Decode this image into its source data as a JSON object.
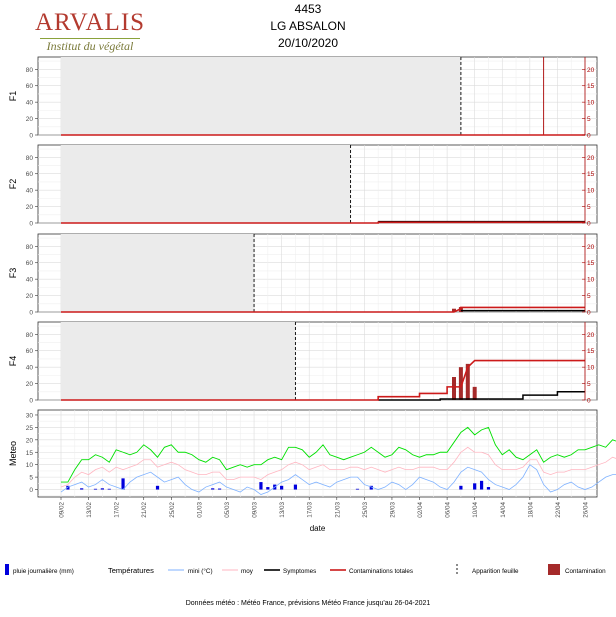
{
  "header": {
    "logo_main": "ARVALIS",
    "logo_sub": "Institut du végétal",
    "title_line1": "4453",
    "title_line2": "LG ABSALON",
    "title_line3": "20/10/2020"
  },
  "footnote": "Données météo : Météo France, prévisions Météo France jusqu'au 26-04-2021",
  "legend": {
    "rain": "pluie journalière (mm)",
    "temperatures": "Températures",
    "tmin": "mini (°C)",
    "tmean": "moy",
    "symptoms": "Symptomes",
    "contaminations": "Contaminations totales",
    "leaf": "Apparition feuille",
    "contam_bar": "Contamination"
  },
  "colors": {
    "contamination_line": "#cc1a1a",
    "contamination_bar": "#a52a2a",
    "symptoms": "#000000",
    "tmax": "#00e000",
    "tmin": "#7fb2ff",
    "tmean": "#ffb6c1",
    "rain": "#0000dd",
    "right_axis": "#aa0000",
    "shade": "#ebebeb"
  },
  "chart_data": [
    {
      "type": "line",
      "panel": "F1",
      "ylabel": "F1",
      "yticks_left": [
        0,
        20,
        40,
        60,
        80
      ],
      "yticks_right": [
        0,
        5,
        10,
        15,
        20
      ],
      "ylim_left": [
        0,
        95
      ],
      "ylim_right": [
        0,
        23.75
      ],
      "shade_range": [
        "2021-02-09",
        "2021-04-08"
      ],
      "leaf_appearance": "2021-04-08",
      "extra_right_line": "2021-04-20",
      "contaminations": [
        [
          "2021-02-09",
          0
        ],
        [
          "2021-04-26",
          0
        ]
      ],
      "symptoms": [],
      "contamination_bars": []
    },
    {
      "type": "line",
      "panel": "F2",
      "ylabel": "F2",
      "yticks_left": [
        0,
        20,
        40,
        60,
        80
      ],
      "yticks_right": [
        0,
        5,
        10,
        15,
        20
      ],
      "ylim_left": [
        0,
        95
      ],
      "ylim_right": [
        0,
        23.75
      ],
      "shade_range": [
        "2021-02-09",
        "2021-03-23"
      ],
      "leaf_appearance": "2021-03-23",
      "contaminations": [
        [
          "2021-02-09",
          0
        ],
        [
          "2021-03-27",
          0
        ],
        [
          "2021-03-27",
          0.2
        ],
        [
          "2021-04-26",
          0.2
        ]
      ],
      "symptoms": [
        [
          "2021-03-27",
          0.4
        ],
        [
          "2021-04-26",
          0.4
        ]
      ],
      "contamination_bars": []
    },
    {
      "type": "line",
      "panel": "F3",
      "ylabel": "F3",
      "yticks_left": [
        0,
        20,
        40,
        60,
        80
      ],
      "yticks_right": [
        0,
        5,
        10,
        15,
        20
      ],
      "ylim_left": [
        0,
        95
      ],
      "ylim_right": [
        0,
        23.75
      ],
      "shade_range": [
        "2021-02-09",
        "2021-03-09"
      ],
      "leaf_appearance": "2021-03-09",
      "contaminations": [
        [
          "2021-02-09",
          0
        ],
        [
          "2021-04-07",
          0
        ],
        [
          "2021-04-08",
          1
        ],
        [
          "2021-04-08",
          1.4
        ],
        [
          "2021-04-26",
          1.4
        ]
      ],
      "symptoms": [
        [
          "2021-04-08",
          0.4
        ],
        [
          "2021-04-26",
          0.4
        ]
      ],
      "contamination_bars": [
        [
          "2021-04-07",
          1.0
        ],
        [
          "2021-04-08",
          1.5
        ]
      ]
    },
    {
      "type": "line",
      "panel": "F4",
      "ylabel": "F4",
      "yticks_left": [
        0,
        20,
        40,
        60,
        80
      ],
      "yticks_right": [
        0,
        5,
        10,
        15,
        20
      ],
      "ylim_left": [
        0,
        95
      ],
      "ylim_right": [
        0,
        23.75
      ],
      "shade_range": [
        "2021-02-09",
        "2021-03-15"
      ],
      "leaf_appearance": "2021-03-15",
      "contaminations": [
        [
          "2021-02-09",
          0
        ],
        [
          "2021-03-27",
          0
        ],
        [
          "2021-03-27",
          1
        ],
        [
          "2021-04-02",
          1
        ],
        [
          "2021-04-02",
          2
        ],
        [
          "2021-04-06",
          2
        ],
        [
          "2021-04-06",
          4
        ],
        [
          "2021-04-08",
          4
        ],
        [
          "2021-04-09",
          10
        ],
        [
          "2021-04-10",
          12
        ],
        [
          "2021-04-26",
          12
        ]
      ],
      "symptoms": [
        [
          "2021-03-27",
          0
        ],
        [
          "2021-04-05",
          0
        ],
        [
          "2021-04-05",
          0.3
        ],
        [
          "2021-04-17",
          0.3
        ],
        [
          "2021-04-17",
          1.5
        ],
        [
          "2021-04-22",
          1.5
        ],
        [
          "2021-04-22",
          2.5
        ],
        [
          "2021-04-26",
          2.5
        ]
      ],
      "contamination_bars": [
        [
          "2021-04-07",
          7
        ],
        [
          "2021-04-08",
          10
        ],
        [
          "2021-04-09",
          11
        ],
        [
          "2021-04-10",
          4
        ]
      ]
    },
    {
      "type": "line",
      "panel": "Meteo",
      "ylabel": "Meteo",
      "xlabel": "date",
      "yticks": [
        0,
        5,
        10,
        15,
        20,
        25,
        30
      ],
      "ylim": [
        -3,
        32
      ],
      "x_tick_labels": [
        "09/02",
        "13/02",
        "17/02",
        "21/02",
        "25/02",
        "01/03",
        "05/03",
        "09/03",
        "13/03",
        "17/03",
        "21/03",
        "25/03",
        "29/03",
        "02/04",
        "06/04",
        "10/04",
        "14/04",
        "18/04",
        "22/04",
        "26/04"
      ],
      "x_start": "2021-02-09",
      "tmax": [
        3,
        3,
        8,
        12,
        12,
        14,
        13,
        11,
        16,
        15,
        14,
        15,
        18,
        16,
        13,
        17,
        18,
        15,
        15,
        14,
        12,
        11,
        13,
        12,
        8,
        9,
        10,
        9,
        10,
        10,
        12,
        13,
        12,
        17,
        17,
        16,
        13,
        15,
        18,
        14,
        13,
        12,
        13,
        14,
        15,
        17,
        15,
        13,
        14,
        17,
        16,
        14,
        13,
        14,
        14,
        15,
        15,
        19,
        23,
        25,
        22,
        24,
        25,
        18,
        14,
        16,
        13,
        12,
        14,
        16,
        11,
        13,
        14,
        13,
        14,
        16,
        16,
        17,
        18,
        17,
        20,
        19,
        18,
        18,
        17,
        16
      ],
      "tmin": [
        -1,
        1,
        2,
        3,
        1,
        2,
        4,
        2,
        1,
        0,
        3,
        5,
        6,
        7,
        5,
        3,
        4,
        5,
        2,
        0,
        -1,
        1,
        2,
        3,
        1,
        0,
        -1,
        1,
        0,
        -2,
        -1,
        1,
        3,
        4,
        6,
        4,
        2,
        3,
        2,
        1,
        3,
        4,
        5,
        5,
        2,
        1,
        0,
        1,
        3,
        2,
        0,
        2,
        5,
        4,
        3,
        1,
        0,
        3,
        7,
        9,
        8,
        7,
        4,
        2,
        1,
        0,
        2,
        5,
        10,
        8,
        2,
        -1,
        0,
        2,
        3,
        1,
        0,
        1,
        3,
        5,
        6,
        6,
        5,
        6,
        6,
        5
      ],
      "tmean": [
        1,
        2,
        5,
        7,
        6,
        8,
        9,
        7,
        9,
        8,
        9,
        10,
        12,
        12,
        9,
        10,
        11,
        10,
        8,
        7,
        6,
        6,
        7,
        7,
        4,
        4,
        5,
        5,
        5,
        4,
        6,
        7,
        8,
        10,
        11,
        10,
        8,
        9,
        10,
        8,
        8,
        8,
        9,
        9,
        8,
        9,
        8,
        7,
        8,
        9,
        8,
        8,
        9,
        9,
        9,
        8,
        8,
        11,
        15,
        17,
        15,
        15,
        14,
        10,
        8,
        8,
        8,
        9,
        12,
        12,
        7,
        6,
        7,
        7,
        8,
        8,
        8,
        9,
        10,
        11,
        13,
        12,
        12,
        12,
        11,
        10
      ],
      "rain": [
        [
          "2021-02-10",
          1.5
        ],
        [
          "2021-02-12",
          0.5
        ],
        [
          "2021-02-14",
          0.3
        ],
        [
          "2021-02-15",
          0.5
        ],
        [
          "2021-02-16",
          0.3
        ],
        [
          "2021-02-18",
          4.5
        ],
        [
          "2021-02-23",
          1.5
        ],
        [
          "2021-03-03",
          0.5
        ],
        [
          "2021-03-04",
          0.4
        ],
        [
          "2021-03-10",
          3.0
        ],
        [
          "2021-03-11",
          1.0
        ],
        [
          "2021-03-12",
          2.0
        ],
        [
          "2021-03-13",
          1.5
        ],
        [
          "2021-03-15",
          2.0
        ],
        [
          "2021-03-24",
          0.3
        ],
        [
          "2021-03-26",
          1.5
        ],
        [
          "2021-04-08",
          1.5
        ],
        [
          "2021-04-10",
          2.5
        ],
        [
          "2021-04-11",
          3.5
        ],
        [
          "2021-04-12",
          1.0
        ]
      ]
    }
  ]
}
